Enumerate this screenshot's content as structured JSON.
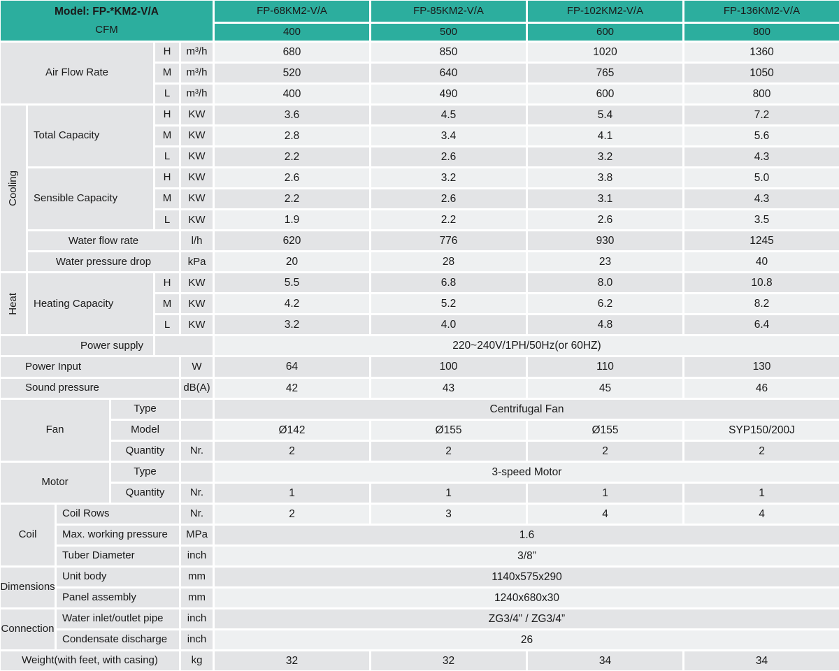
{
  "palette": {
    "teal": "#2cae9e",
    "cell_gray": "#e3e4e6",
    "cell_light": "#eef0f1",
    "text": "#1a1a1a"
  },
  "header": {
    "model_label": "Model: FP-*KM2-V/A",
    "cfm_label": "CFM",
    "columns": [
      "FP-68KM2-V/A",
      "FP-85KM2-V/A",
      "FP-102KM2-V/A",
      "FP-136KM2-V/A"
    ],
    "cfm": [
      "400",
      "500",
      "600",
      "800"
    ]
  },
  "airflow": {
    "label": "Air Flow Rate",
    "rows": [
      {
        "speed": "H",
        "unit": "m³/h",
        "values": [
          "680",
          "850",
          "1020",
          "1360"
        ]
      },
      {
        "speed": "M",
        "unit": "m³/h",
        "values": [
          "520",
          "640",
          "765",
          "1050"
        ]
      },
      {
        "speed": "L",
        "unit": "m³/h",
        "values": [
          "400",
          "490",
          "600",
          "800"
        ]
      }
    ]
  },
  "cooling": {
    "group_label": "Cooling",
    "total_capacity": {
      "label": "Total Capacity",
      "rows": [
        {
          "speed": "H",
          "unit": "KW",
          "values": [
            "3.6",
            "4.5",
            "5.4",
            "7.2"
          ]
        },
        {
          "speed": "M",
          "unit": "KW",
          "values": [
            "2.8",
            "3.4",
            "4.1",
            "5.6"
          ]
        },
        {
          "speed": "L",
          "unit": "KW",
          "values": [
            "2.2",
            "2.6",
            "3.2",
            "4.3"
          ]
        }
      ]
    },
    "sensible_capacity": {
      "label": "Sensible Capacity",
      "rows": [
        {
          "speed": "H",
          "unit": "KW",
          "values": [
            "2.6",
            "3.2",
            "3.8",
            "5.0"
          ]
        },
        {
          "speed": "M",
          "unit": "KW",
          "values": [
            "2.2",
            "2.6",
            "3.1",
            "4.3"
          ]
        },
        {
          "speed": "L",
          "unit": "KW",
          "values": [
            "1.9",
            "2.2",
            "2.6",
            "3.5"
          ]
        }
      ]
    },
    "water_flow_rate": {
      "label": "Water flow rate",
      "unit": "l/h",
      "values": [
        "620",
        "776",
        "930",
        "1245"
      ]
    },
    "water_pressure_drop": {
      "label": "Water pressure drop",
      "unit": "kPa",
      "values": [
        "20",
        "28",
        "23",
        "40"
      ]
    }
  },
  "heat": {
    "group_label": "Heat",
    "heating_capacity": {
      "label": "Heating Capacity",
      "rows": [
        {
          "speed": "H",
          "unit": "KW",
          "values": [
            "5.5",
            "6.8",
            "8.0",
            "10.8"
          ]
        },
        {
          "speed": "M",
          "unit": "KW",
          "values": [
            "4.2",
            "5.2",
            "6.2",
            "8.2"
          ]
        },
        {
          "speed": "L",
          "unit": "KW",
          "values": [
            "3.2",
            "4.0",
            "4.8",
            "6.4"
          ]
        }
      ]
    }
  },
  "power_supply": {
    "label": "Power supply",
    "value": "220~240V/1PH/50Hz(or 60HZ)"
  },
  "power_input": {
    "label": "Power Input",
    "unit": "W",
    "values": [
      "64",
      "100",
      "110",
      "130"
    ]
  },
  "sound_pressure": {
    "label": "Sound pressure",
    "unit": "dB(A)",
    "values": [
      "42",
      "43",
      "45",
      "46"
    ]
  },
  "fan": {
    "group_label": "Fan",
    "type": {
      "label": "Type",
      "value": "Centrifugal Fan"
    },
    "model": {
      "label": "Model",
      "values": [
        "Ø142",
        "Ø155",
        "Ø155",
        "SYP150/200J"
      ]
    },
    "quantity": {
      "label": "Quantity",
      "unit": "Nr.",
      "values": [
        "2",
        "2",
        "2",
        "2"
      ]
    }
  },
  "motor": {
    "group_label": "Motor",
    "type": {
      "label": "Type",
      "value": "3-speed Motor"
    },
    "quantity": {
      "label": "Quantity",
      "unit": "Nr.",
      "values": [
        "1",
        "1",
        "1",
        "1"
      ]
    }
  },
  "coil": {
    "group_label": "Coil",
    "coil_rows": {
      "label": "Coil Rows",
      "unit": "Nr.",
      "values": [
        "2",
        "3",
        "4",
        "4"
      ]
    },
    "max_working_pressure": {
      "label": "Max. working pressure",
      "unit": "MPa",
      "value": "1.6"
    },
    "tuber_diameter": {
      "label": "Tuber Diameter",
      "unit": "inch",
      "value": "3/8”"
    }
  },
  "dimensions": {
    "group_label": "Dimensions",
    "unit_body": {
      "label": "Unit body",
      "unit": "mm",
      "value": "1140x575x290"
    },
    "panel_assembly": {
      "label": "Panel assembly",
      "unit": "mm",
      "value": "1240x680x30"
    }
  },
  "connection": {
    "group_label": "Connection",
    "water_pipe": {
      "label": "Water inlet/outlet pipe",
      "unit": "inch",
      "value": "ZG3/4” / ZG3/4”"
    },
    "condensate": {
      "label": "Condensate discharge",
      "unit": "inch",
      "value": "26"
    }
  },
  "weight": {
    "label": "Weight(with feet, with casing)",
    "unit": "kg",
    "values": [
      "32",
      "32",
      "34",
      "34"
    ]
  }
}
